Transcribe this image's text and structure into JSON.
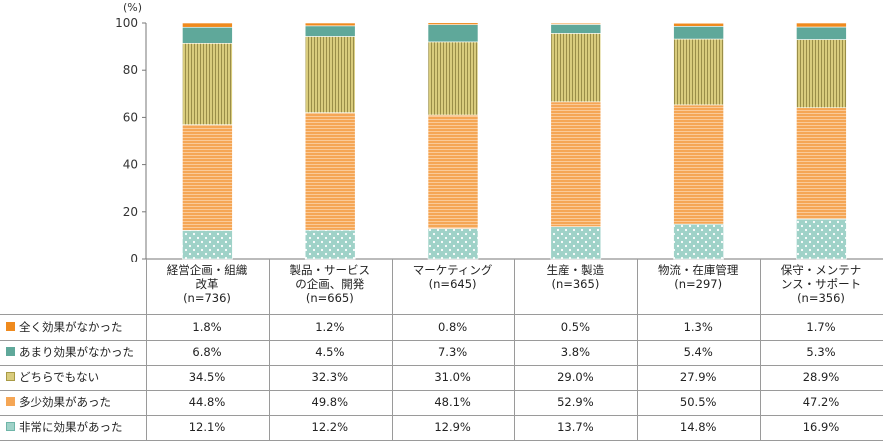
{
  "chart_data": {
    "type": "bar",
    "stacked": true,
    "unit_label": "(%)",
    "ylim": [
      0,
      100
    ],
    "yticks": [
      "0",
      "20",
      "40",
      "60",
      "80",
      "100"
    ],
    "categories": [
      "経営企画・組織\n改革\n(n=736)",
      "製品・サービス\nの企画、開発\n(n=665)",
      "マーケティング\n(n=645)",
      "生産・製造\n(n=365)",
      "物流・在庫管理\n(n=297)",
      "保守・メンテナ\nンス・サポート\n(n=356)"
    ],
    "series": [
      {
        "name": "非常に効果があった",
        "color": "#9fd2c8",
        "pattern": "dots",
        "values": [
          12.1,
          12.2,
          12.9,
          13.7,
          14.8,
          16.9
        ],
        "labels": [
          "12.1%",
          "12.2%",
          "12.9%",
          "13.7%",
          "14.8%",
          "16.9%"
        ]
      },
      {
        "name": "多少効果があった",
        "color": "#f5a655",
        "pattern": "hlines",
        "values": [
          44.8,
          49.8,
          48.1,
          52.9,
          50.5,
          47.2
        ],
        "labels": [
          "44.8%",
          "49.8%",
          "48.1%",
          "52.9%",
          "50.5%",
          "47.2%"
        ]
      },
      {
        "name": "どちらでもない",
        "color": "#d9cc7d",
        "pattern": "vlines",
        "values": [
          34.5,
          32.3,
          31.0,
          29.0,
          27.9,
          28.9
        ],
        "labels": [
          "34.5%",
          "32.3%",
          "31.0%",
          "29.0%",
          "27.9%",
          "28.9%"
        ]
      },
      {
        "name": "あまり効果がなかった",
        "color": "#5fa89a",
        "pattern": "solid",
        "values": [
          6.8,
          4.5,
          7.3,
          3.8,
          5.4,
          5.3
        ],
        "labels": [
          "6.8%",
          "4.5%",
          "7.3%",
          "3.8%",
          "5.4%",
          "5.3%"
        ]
      },
      {
        "name": "全く効果がなかった",
        "color": "#ef8a1e",
        "pattern": "solid",
        "values": [
          1.8,
          1.2,
          0.8,
          0.5,
          1.3,
          1.7
        ],
        "labels": [
          "1.8%",
          "1.2%",
          "0.8%",
          "0.5%",
          "1.3%",
          "1.7%"
        ]
      }
    ],
    "table_order": [
      "全く効果がなかった",
      "あまり効果がなかった",
      "どちらでもない",
      "多少効果があった",
      "非常に効果があった"
    ]
  }
}
